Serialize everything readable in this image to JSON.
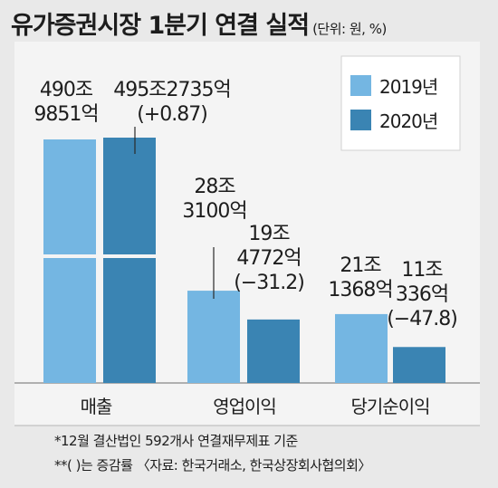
{
  "title": "유가증권시장 1분기 연결 실적",
  "unit": "(단위: 원, %)",
  "chart_data": {
    "type": "bar",
    "categories": [
      "매출",
      "영업이익",
      "당기순이익"
    ],
    "series": [
      {
        "name": "2019년",
        "color": "#74b6e2",
        "values": [
          490.9851,
          28.31,
          21.1368
        ],
        "labels": [
          [
            "490조",
            "9851억"
          ],
          [
            "28조",
            "3100억"
          ],
          [
            "21조",
            "1368억"
          ]
        ]
      },
      {
        "name": "2020년",
        "color": "#3a84b3",
        "values": [
          495.2735,
          19.4772,
          11.0336
        ],
        "labels": [
          [
            "495조2735억",
            "(+0.87)"
          ],
          [
            "19조",
            "4772억",
            "(−31.2)"
          ],
          [
            "11조",
            "336억",
            "(−47.8)"
          ]
        ],
        "change_pct": [
          0.87,
          -31.2,
          -47.8
        ]
      }
    ],
    "legend": "top-right",
    "axis_break": "매출 bars are broken"
  },
  "notes": [
    "*12월 결산법인 592개사 연결재무제표 기준",
    "**(  )는 증감률 〈자료: 한국거래소, 한국상장회사협의회〉"
  ]
}
